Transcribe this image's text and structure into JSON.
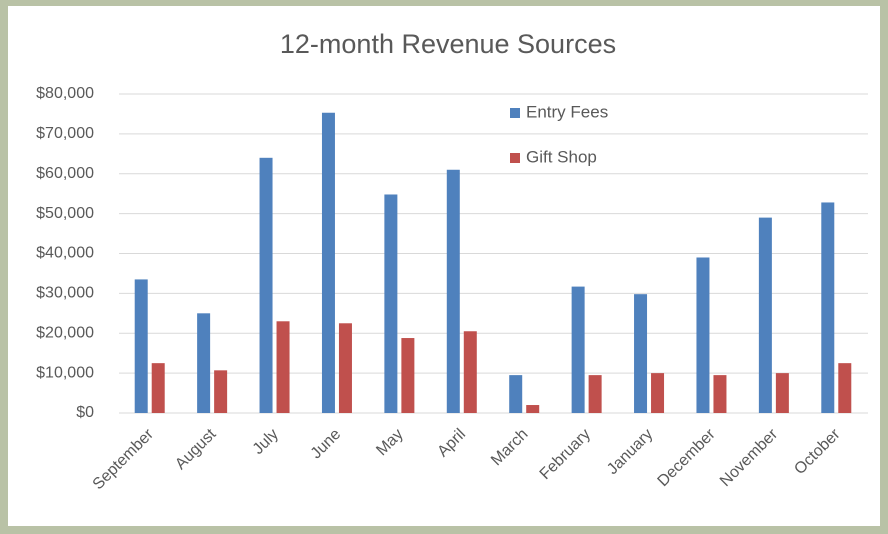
{
  "chart_data": {
    "type": "bar",
    "title": "12-month Revenue Sources",
    "categories": [
      "September",
      "August",
      "July",
      "June",
      "May",
      "April",
      "March",
      "February",
      "January",
      "December",
      "November",
      "October"
    ],
    "series": [
      {
        "name": "Entry Fees",
        "color": "#4f81bd",
        "values": [
          33500,
          25000,
          64000,
          75300,
          54800,
          61000,
          9500,
          31700,
          29800,
          39000,
          49000,
          52800
        ]
      },
      {
        "name": "Gift Shop",
        "color": "#c0504d",
        "values": [
          12500,
          10700,
          23000,
          22500,
          18800,
          20500,
          2000,
          9500,
          10000,
          9500,
          10000,
          12500
        ]
      }
    ],
    "ylim": [
      0,
      80000
    ],
    "yticks": [
      {
        "value": 0,
        "label": "$0"
      },
      {
        "value": 10000,
        "label": "$10,000"
      },
      {
        "value": 20000,
        "label": "$20,000"
      },
      {
        "value": 30000,
        "label": "$30,000"
      },
      {
        "value": 40000,
        "label": "$40,000"
      },
      {
        "value": 50000,
        "label": "$50,000"
      },
      {
        "value": 60000,
        "label": "$60,000"
      },
      {
        "value": 70000,
        "label": "$70,000"
      },
      {
        "value": 80000,
        "label": "$80,000"
      }
    ],
    "grid": true,
    "legend": "top"
  }
}
